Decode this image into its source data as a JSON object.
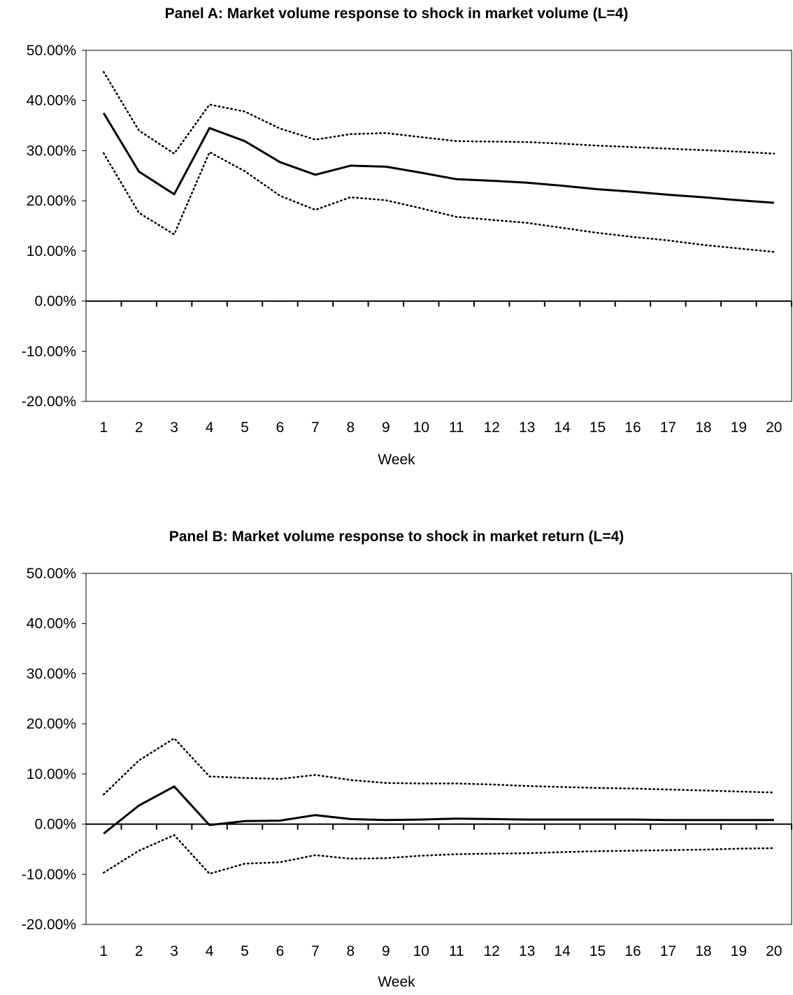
{
  "chart_data": [
    {
      "type": "line",
      "title": "Panel A: Market volume response to shock in market volume (L=4)",
      "xlabel": "Week",
      "ylabel": "",
      "categories": [
        "1",
        "2",
        "3",
        "4",
        "5",
        "6",
        "7",
        "8",
        "9",
        "10",
        "11",
        "12",
        "13",
        "14",
        "15",
        "16",
        "17",
        "18",
        "19",
        "20"
      ],
      "yticks": [
        "50.00%",
        "40.00%",
        "30.00%",
        "20.00%",
        "10.00%",
        "0.00%",
        "-10.00%",
        "-20.00%"
      ],
      "ylim": [
        -20,
        50
      ],
      "series": [
        {
          "style": "solid",
          "values": [
            37.5,
            25.8,
            21.3,
            34.5,
            31.9,
            27.7,
            25.2,
            27.0,
            26.8,
            25.6,
            24.3,
            24.0,
            23.6,
            23.0,
            22.3,
            21.8,
            21.2,
            20.7,
            20.1,
            19.6
          ]
        },
        {
          "style": "dotted",
          "values": [
            45.7,
            34.0,
            29.4,
            39.2,
            37.8,
            34.4,
            32.2,
            33.3,
            33.5,
            32.7,
            31.9,
            31.8,
            31.7,
            31.4,
            31.0,
            30.7,
            30.4,
            30.1,
            29.8,
            29.4
          ]
        },
        {
          "style": "dotted",
          "values": [
            29.5,
            17.6,
            13.3,
            29.7,
            25.9,
            21.0,
            18.2,
            20.7,
            20.1,
            18.5,
            16.8,
            16.2,
            15.6,
            14.6,
            13.6,
            12.8,
            12.1,
            11.2,
            10.5,
            9.8
          ]
        }
      ]
    },
    {
      "type": "line",
      "title": "Panel B: Market volume response to shock in market return (L=4)",
      "xlabel": "Week",
      "ylabel": "",
      "categories": [
        "1",
        "2",
        "3",
        "4",
        "5",
        "6",
        "7",
        "8",
        "9",
        "10",
        "11",
        "12",
        "13",
        "14",
        "15",
        "16",
        "17",
        "18",
        "19",
        "20"
      ],
      "yticks": [
        "50.00%",
        "40.00%",
        "30.00%",
        "20.00%",
        "10.00%",
        "0.00%",
        "-10.00%",
        "-20.00%"
      ],
      "ylim": [
        -20,
        50
      ],
      "series": [
        {
          "style": "solid",
          "values": [
            -1.9,
            3.7,
            7.5,
            -0.2,
            0.6,
            0.7,
            1.8,
            1.0,
            0.8,
            0.9,
            1.1,
            1.0,
            0.9,
            0.9,
            0.9,
            0.9,
            0.8,
            0.8,
            0.8,
            0.8
          ]
        },
        {
          "style": "dotted",
          "values": [
            5.9,
            12.7,
            17.1,
            9.5,
            9.2,
            9.0,
            9.8,
            8.8,
            8.2,
            8.1,
            8.1,
            7.9,
            7.6,
            7.4,
            7.2,
            7.1,
            6.9,
            6.7,
            6.5,
            6.3
          ]
        },
        {
          "style": "dotted",
          "values": [
            -9.7,
            -5.3,
            -2.2,
            -9.9,
            -7.9,
            -7.6,
            -6.2,
            -6.9,
            -6.8,
            -6.3,
            -6.0,
            -5.9,
            -5.8,
            -5.6,
            -5.4,
            -5.3,
            -5.2,
            -5.1,
            -4.9,
            -4.8
          ]
        }
      ]
    }
  ]
}
